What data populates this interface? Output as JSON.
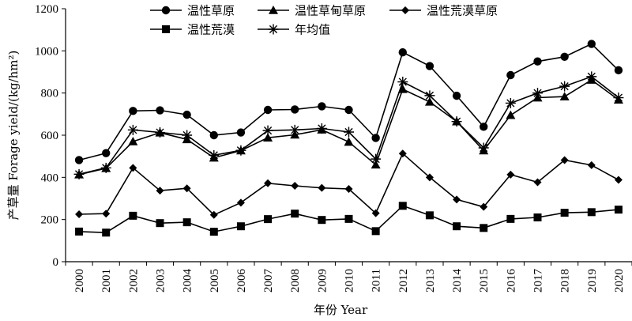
{
  "chart_data": {
    "type": "line",
    "title": "",
    "xlabel": "年份 Year",
    "ylabel": "产草量 Forage yield/(kg/hm²)",
    "ylim": [
      0,
      1200
    ],
    "yticks": [
      0,
      200,
      400,
      600,
      800,
      1000,
      1200
    ],
    "grid": false,
    "legend_position": "top",
    "x": [
      "2000",
      "2001",
      "2002",
      "2003",
      "2004",
      "2005",
      "2006",
      "2007",
      "2008",
      "2009",
      "2010",
      "2011",
      "2012",
      "2013",
      "2014",
      "2015",
      "2016",
      "2017",
      "2018",
      "2019",
      "2020"
    ],
    "series": [
      {
        "name": "温性草原",
        "marker": "circle",
        "values": [
          482,
          515,
          715,
          718,
          697,
          600,
          613,
          720,
          722,
          737,
          720,
          587,
          993,
          928,
          787,
          640,
          885,
          950,
          972,
          1033,
          908
        ]
      },
      {
        "name": "温性草甸草原",
        "marker": "triangle",
        "values": [
          413,
          443,
          570,
          612,
          580,
          493,
          527,
          588,
          602,
          626,
          568,
          460,
          818,
          758,
          665,
          527,
          695,
          778,
          783,
          862,
          768
        ]
      },
      {
        "name": "温性荒漠草原",
        "marker": "diamond",
        "values": [
          225,
          228,
          445,
          337,
          348,
          222,
          280,
          372,
          360,
          350,
          345,
          230,
          513,
          400,
          295,
          260,
          413,
          377,
          482,
          458,
          388
        ]
      },
      {
        "name": "温性荒漠",
        "marker": "square",
        "values": [
          143,
          138,
          218,
          183,
          187,
          142,
          168,
          202,
          228,
          198,
          203,
          145,
          265,
          220,
          168,
          160,
          203,
          210,
          232,
          235,
          247
        ]
      },
      {
        "name": "年均值",
        "marker": "star",
        "values": [
          415,
          445,
          625,
          613,
          600,
          505,
          528,
          622,
          625,
          632,
          615,
          487,
          853,
          788,
          665,
          540,
          752,
          800,
          832,
          878,
          778
        ]
      }
    ]
  }
}
